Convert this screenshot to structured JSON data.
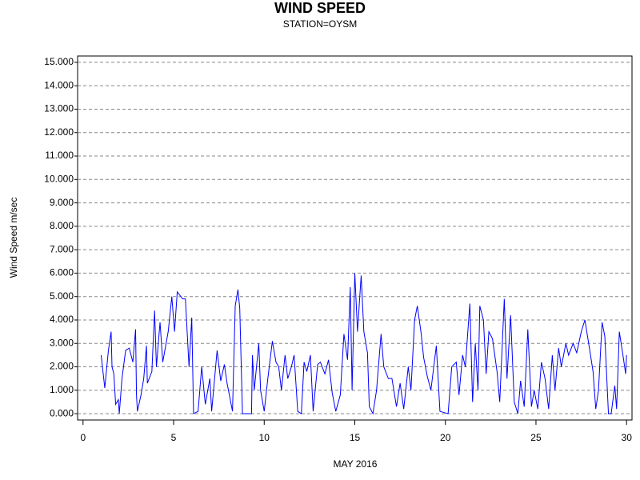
{
  "chart_data": {
    "type": "line",
    "title": "WIND SPEED",
    "subtitle": "STATION=OYSM",
    "x_label": "MAY 2016",
    "y_label": "Wind Speed m/sec",
    "x": [
      1.0,
      1.2,
      1.4,
      1.55,
      1.6,
      1.7,
      1.8,
      1.95,
      2.0,
      2.15,
      2.35,
      2.55,
      2.75,
      2.9,
      2.95,
      3.0,
      3.2,
      3.35,
      3.5,
      3.55,
      3.8,
      3.95,
      4.05,
      4.25,
      4.4,
      4.7,
      4.9,
      5.05,
      5.2,
      5.5,
      5.65,
      5.85,
      6.0,
      6.1,
      6.35,
      6.55,
      6.75,
      7.0,
      7.1,
      7.4,
      7.6,
      7.8,
      7.95,
      8.25,
      8.4,
      8.55,
      8.65,
      8.8,
      9.3,
      9.35,
      9.45,
      9.7,
      9.8,
      10.0,
      10.2,
      10.45,
      10.65,
      10.8,
      10.95,
      11.15,
      11.3,
      11.5,
      11.65,
      11.85,
      12.05,
      12.2,
      12.35,
      12.55,
      12.7,
      12.95,
      13.1,
      13.35,
      13.55,
      13.75,
      13.95,
      14.2,
      14.4,
      14.6,
      14.75,
      14.85,
      15.0,
      15.15,
      15.35,
      15.5,
      15.7,
      15.8,
      16.0,
      16.2,
      16.45,
      16.6,
      16.85,
      17.05,
      17.3,
      17.5,
      17.7,
      17.95,
      18.1,
      18.3,
      18.45,
      18.65,
      18.8,
      19.0,
      19.2,
      19.5,
      19.7,
      20.15,
      20.35,
      20.6,
      20.75,
      20.95,
      21.1,
      21.35,
      21.5,
      21.65,
      21.8,
      21.9,
      22.1,
      22.25,
      22.4,
      22.6,
      22.85,
      23.0,
      23.25,
      23.4,
      23.6,
      23.8,
      24.0,
      24.15,
      24.35,
      24.55,
      24.75,
      24.9,
      25.1,
      25.3,
      25.5,
      25.7,
      25.9,
      26.05,
      26.25,
      26.4,
      26.65,
      26.8,
      27.05,
      27.25,
      27.5,
      27.7,
      27.95,
      28.15,
      28.3,
      28.45,
      28.65,
      28.8,
      29.0,
      29.15,
      29.35,
      29.45,
      29.6,
      29.8,
      29.95,
      30.0
    ],
    "series": [
      {
        "name": "Wind Speed",
        "color": "#0000ff",
        "values": [
          2.5,
          1.1,
          2.7,
          3.5,
          2.0,
          1.7,
          0.4,
          0.6,
          0.0,
          1.5,
          2.7,
          2.8,
          2.2,
          3.6,
          0.8,
          0.1,
          0.8,
          1.5,
          2.9,
          1.3,
          1.8,
          4.4,
          2.0,
          3.9,
          2.2,
          3.5,
          5.0,
          3.5,
          5.2,
          4.9,
          4.9,
          2.0,
          4.1,
          0.0,
          0.1,
          2.0,
          0.4,
          1.5,
          0.1,
          2.7,
          1.4,
          2.1,
          1.3,
          0.1,
          4.6,
          5.3,
          4.5,
          0.0,
          0.0,
          2.5,
          1.0,
          3.0,
          1.0,
          0.1,
          1.5,
          3.1,
          2.2,
          2.0,
          1.0,
          2.5,
          1.5,
          2.0,
          2.5,
          0.1,
          0.0,
          2.2,
          1.8,
          2.5,
          0.1,
          2.1,
          2.2,
          1.7,
          2.3,
          0.9,
          0.1,
          0.8,
          3.4,
          2.3,
          5.4,
          1.0,
          6.0,
          3.5,
          5.9,
          3.5,
          2.6,
          0.3,
          0.0,
          1.0,
          3.4,
          2.0,
          1.5,
          1.5,
          0.3,
          1.3,
          0.2,
          2.0,
          1.0,
          4.0,
          4.6,
          3.5,
          2.4,
          1.6,
          1.0,
          2.9,
          0.1,
          0.0,
          2.0,
          2.2,
          0.8,
          2.5,
          2.0,
          4.7,
          0.5,
          3.0,
          1.0,
          4.6,
          4.0,
          1.7,
          3.5,
          3.2,
          1.8,
          0.5,
          4.9,
          1.5,
          4.2,
          0.5,
          0.0,
          1.4,
          0.3,
          3.6,
          0.3,
          1.0,
          0.2,
          2.2,
          1.5,
          0.2,
          2.5,
          1.0,
          2.8,
          2.0,
          3.0,
          2.5,
          3.0,
          2.6,
          3.5,
          4.0,
          2.8,
          1.8,
          0.2,
          1.0,
          3.9,
          3.3,
          0.0,
          0.0,
          1.2,
          0.2,
          3.5,
          2.5,
          1.7,
          2.5
        ]
      }
    ],
    "xlim": [
      -0.3,
      30.3
    ],
    "xticks": [
      0,
      5,
      10,
      15,
      20,
      25,
      30
    ],
    "ylim": [
      -0.27,
      15.27
    ],
    "yticks": [
      {
        "value": 0,
        "label": "0.000"
      },
      {
        "value": 1,
        "label": "1.000"
      },
      {
        "value": 2,
        "label": "2.000"
      },
      {
        "value": 3,
        "label": "3.000"
      },
      {
        "value": 4,
        "label": "4.000"
      },
      {
        "value": 5,
        "label": "5.000"
      },
      {
        "value": 6,
        "label": "6.000"
      },
      {
        "value": 7,
        "label": "7.000"
      },
      {
        "value": 8,
        "label": "8.000"
      },
      {
        "value": 9,
        "label": "9.000"
      },
      {
        "value": 10,
        "label": "10.000"
      },
      {
        "value": 11,
        "label": "11.000"
      },
      {
        "value": 12,
        "label": "12.000"
      },
      {
        "value": 13,
        "label": "13.000"
      },
      {
        "value": 14,
        "label": "14.000"
      },
      {
        "value": 15,
        "label": "15.000"
      }
    ],
    "grid": true
  }
}
